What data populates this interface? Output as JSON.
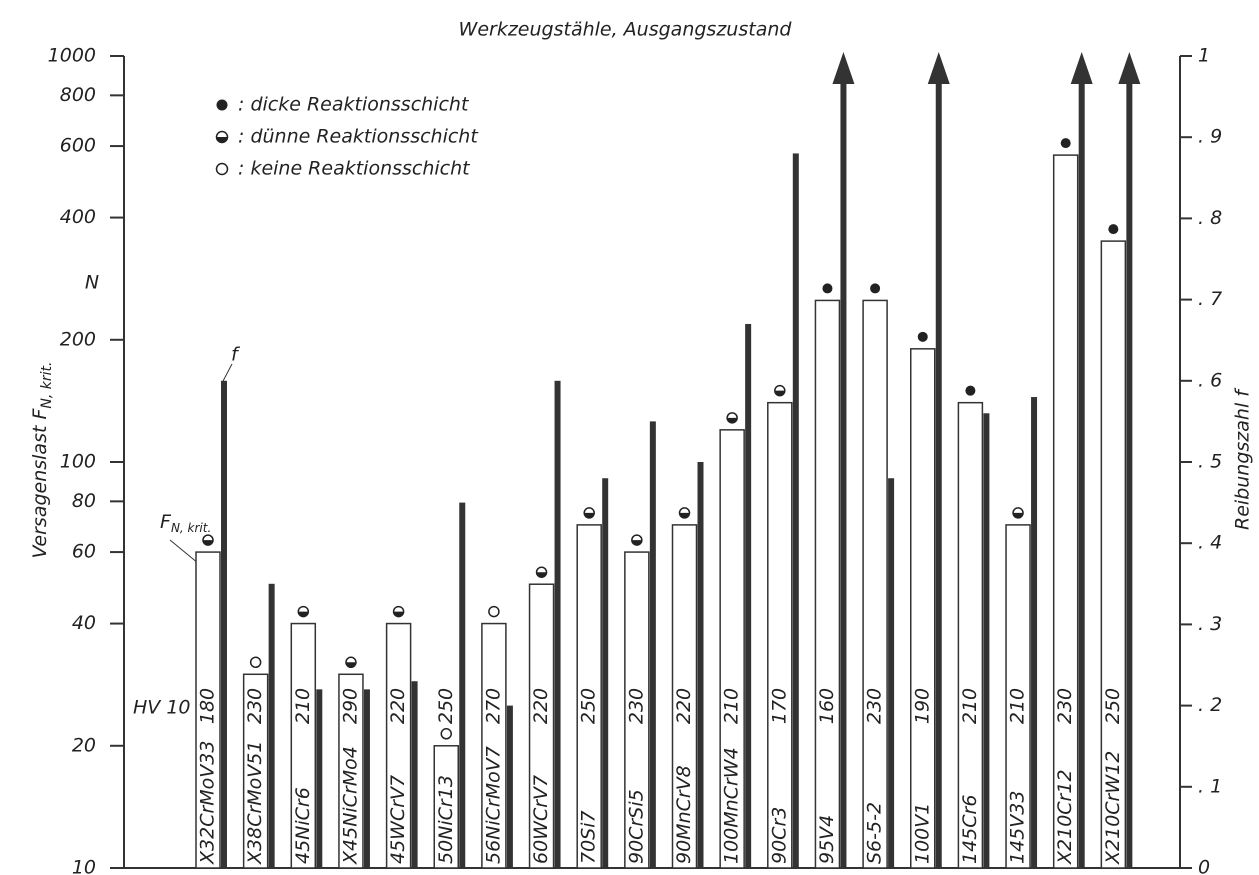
{
  "chart_data": {
    "type": "bar",
    "title": "Werkzeugstähle, Ausgangszustand",
    "y_label": "Versagenslast F",
    "y_label_sub": "N, krit.",
    "y_unit": "N",
    "y2_label": "Reibungszahl f",
    "ylog": true,
    "ylim": [
      10,
      1000
    ],
    "yticks": [
      10,
      20,
      40,
      60,
      80,
      100,
      200,
      400,
      600,
      800,
      1000
    ],
    "y2lim": [
      0,
      1
    ],
    "y2ticks": [
      0,
      {
        "value": 0.1,
        "label": ". 1"
      },
      {
        "value": 0.2,
        "label": ". 2"
      },
      {
        "value": 0.3,
        "label": ". 3"
      },
      {
        "value": 0.4,
        "label": ". 4"
      },
      {
        "value": 0.5,
        "label": ". 5"
      },
      {
        "value": 0.6,
        "label": ". 6"
      },
      {
        "value": 0.7,
        "label": ". 7"
      },
      {
        "value": 0.8,
        "label": ". 8"
      },
      {
        "value": 0.9,
        "label": ". 9"
      },
      {
        "value": 1,
        "label": "1"
      }
    ],
    "legend": [
      {
        "label": ": dicke Reaktionsschicht",
        "style": "full"
      },
      {
        "label": ": dünne Reaktionsschicht",
        "style": "half"
      },
      {
        "label": ": keine Reaktionsschicht",
        "style": "open"
      }
    ],
    "categories": [
      "X32CrMoV33",
      "X38CrMoV51",
      "45NiCr6",
      "X45NiCrMo4",
      "45WCrV7",
      "50NiCr13",
      "56NiCrMoV7",
      "60WCrV7",
      "70Si7",
      "90CrSi5",
      "90MnCrV8",
      "100MnCrW4",
      "90Cr3",
      "95V4",
      "S6-5-2",
      "100V1",
      "145Cr6",
      "145V33",
      "X210Cr12",
      "X210CrW12"
    ],
    "F_values": [
      60,
      30,
      40,
      30,
      40,
      20,
      40,
      50,
      70,
      60,
      70,
      120,
      140,
      250,
      250,
      190,
      140,
      70,
      570,
      350
    ],
    "hardness": [
      180,
      230,
      210,
      290,
      220,
      250,
      270,
      220,
      250,
      230,
      220,
      210,
      170,
      160,
      230,
      190,
      210,
      210,
      230,
      250
    ],
    "layer": [
      "half",
      "open",
      "half",
      "half",
      "half",
      "open",
      "open",
      "half",
      "half",
      "half",
      "half",
      "half",
      "half",
      "full",
      "full",
      "full",
      "full",
      "half",
      "full",
      "full"
    ],
    "f_values": [
      0.6,
      0.35,
      0.22,
      0.22,
      0.23,
      0.45,
      0.2,
      0.6,
      0.48,
      0.55,
      0.5,
      0.67,
      0.88,
      null,
      0.48,
      null,
      0.56,
      0.58,
      null,
      null
    ],
    "f_off_scale": [
      false,
      false,
      false,
      false,
      false,
      false,
      false,
      false,
      false,
      false,
      false,
      false,
      false,
      true,
      false,
      true,
      false,
      false,
      true,
      true
    ],
    "bar_color": "#ffffff",
    "f_color": "#333333",
    "annotations": {
      "f": "f",
      "F": "F",
      "F_sub": "N, krit.",
      "hv": "HV 10"
    }
  }
}
